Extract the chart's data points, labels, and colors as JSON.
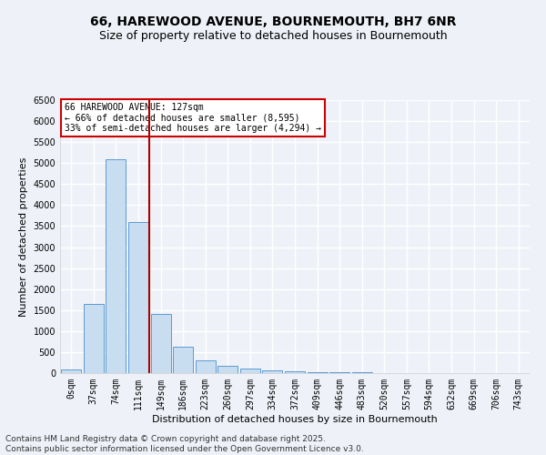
{
  "title_line1": "66, HAREWOOD AVENUE, BOURNEMOUTH, BH7 6NR",
  "title_line2": "Size of property relative to detached houses in Bournemouth",
  "xlabel": "Distribution of detached houses by size in Bournemouth",
  "ylabel": "Number of detached properties",
  "categories": [
    "0sqm",
    "37sqm",
    "74sqm",
    "111sqm",
    "149sqm",
    "186sqm",
    "223sqm",
    "260sqm",
    "297sqm",
    "334sqm",
    "372sqm",
    "409sqm",
    "446sqm",
    "483sqm",
    "520sqm",
    "557sqm",
    "594sqm",
    "632sqm",
    "669sqm",
    "706sqm",
    "743sqm"
  ],
  "values": [
    80,
    1650,
    5100,
    3600,
    1400,
    620,
    300,
    170,
    110,
    70,
    50,
    30,
    20,
    15,
    10,
    8,
    5,
    3,
    2,
    1,
    0
  ],
  "bar_color": "#c9ddf0",
  "bar_edge_color": "#5b9bd5",
  "vline_x": 3.5,
  "vline_color": "#aa0000",
  "annotation_text": "66 HAREWOOD AVENUE: 127sqm\n← 66% of detached houses are smaller (8,595)\n33% of semi-detached houses are larger (4,294) →",
  "annotation_box_color": "#ffffff",
  "annotation_box_edge": "#cc0000",
  "ylim": [
    0,
    6500
  ],
  "yticks": [
    0,
    500,
    1000,
    1500,
    2000,
    2500,
    3000,
    3500,
    4000,
    4500,
    5000,
    5500,
    6000,
    6500
  ],
  "footer_line1": "Contains HM Land Registry data © Crown copyright and database right 2025.",
  "footer_line2": "Contains public sector information licensed under the Open Government Licence v3.0.",
  "bg_color": "#eef2f8",
  "plot_bg_color": "#eef2f8",
  "grid_color": "#ffffff",
  "title1_fontsize": 10,
  "title2_fontsize": 9,
  "label_fontsize": 8,
  "tick_fontsize": 7,
  "footer_fontsize": 6.5
}
